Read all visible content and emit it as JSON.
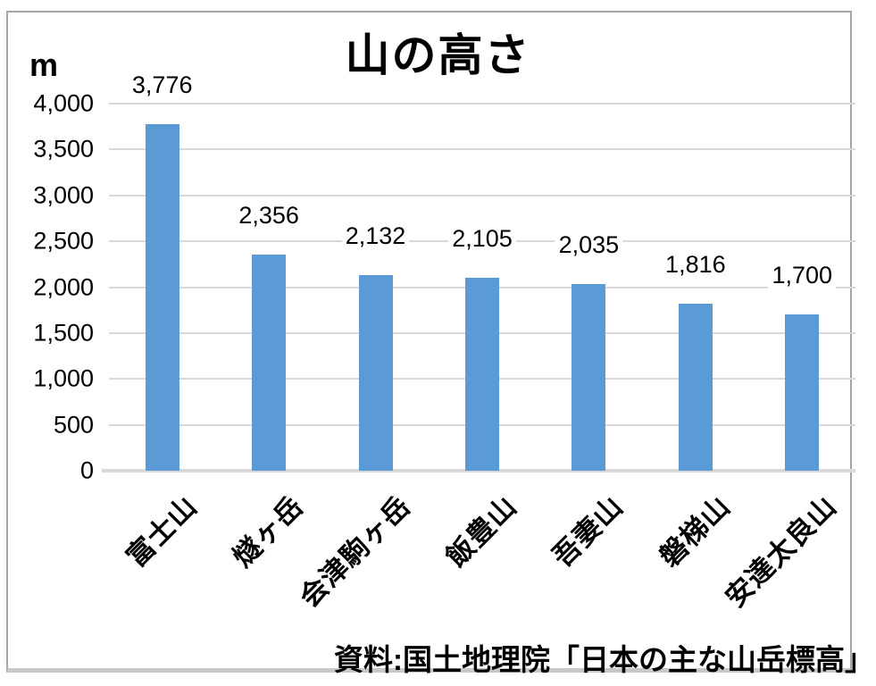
{
  "chart_data": {
    "type": "bar",
    "title": "山の高さ",
    "unit": "m",
    "categories": [
      "富士山",
      "燧ヶ岳",
      "会津駒ヶ岳",
      "飯豊山",
      "吾妻山",
      "磐梯山",
      "安達太良山"
    ],
    "values": [
      3776,
      2356,
      2132,
      2105,
      2035,
      1816,
      1700
    ],
    "value_labels": [
      "3,776",
      "2,356",
      "2,132",
      "2,105",
      "2,035",
      "1,816",
      "1,700"
    ],
    "xlabel": "",
    "ylabel": "m",
    "ylim": [
      0,
      4000
    ],
    "ytick_step": 500,
    "ytick_labels": [
      "0",
      "500",
      "1,000",
      "1,500",
      "2,000",
      "2,500",
      "3,000",
      "3,500",
      "4,000"
    ],
    "grid": true,
    "legend": "none",
    "bar_color": "#5B9BD5",
    "gridline_color": "#D9D9D9",
    "source_note": "資料:国土地理院「日本の主な山岳標高」"
  }
}
